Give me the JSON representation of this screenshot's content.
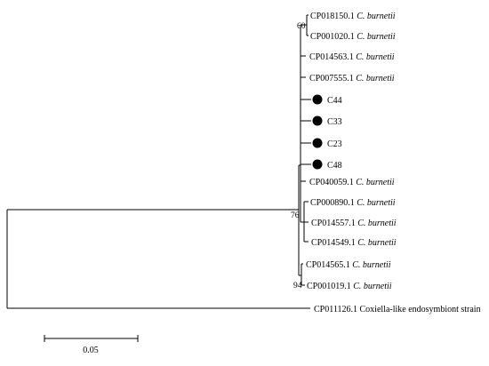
{
  "tree": {
    "taxa": [
      {
        "id": "t1",
        "accession": "CP018150.1",
        "name": "C. burnetii",
        "marker": false
      },
      {
        "id": "t2",
        "accession": "CP001020.1",
        "name": "C. burnetii",
        "marker": false
      },
      {
        "id": "t3",
        "accession": "CP014563.1",
        "name": "C. burnetii",
        "marker": false
      },
      {
        "id": "t4",
        "accession": "CP007555.1",
        "name": "C. burnetii",
        "marker": false
      },
      {
        "id": "t5",
        "accession": "C44",
        "name": "",
        "marker": true
      },
      {
        "id": "t6",
        "accession": "C33",
        "name": "",
        "marker": true
      },
      {
        "id": "t7",
        "accession": "C23",
        "name": "",
        "marker": true
      },
      {
        "id": "t8",
        "accession": "C48",
        "name": "",
        "marker": true
      },
      {
        "id": "t9",
        "accession": "CP040059.1",
        "name": "C. burnetii",
        "marker": false
      },
      {
        "id": "t10",
        "accession": "CP000890.1",
        "name": "C. burnetii",
        "marker": false
      },
      {
        "id": "t11",
        "accession": "CP014557.1",
        "name": "C. burnetii",
        "marker": false
      },
      {
        "id": "t12",
        "accession": "CP014549.1",
        "name": "C. burnetii",
        "marker": false
      },
      {
        "id": "t13",
        "accession": "CP014565.1",
        "name": "C. burnetii",
        "marker": false
      },
      {
        "id": "t14",
        "accession": "CP001019.1",
        "name": "C. burnetii",
        "marker": false
      },
      {
        "id": "t15",
        "accession": "CP011126.1",
        "name": "Coxiella-like endosymbiont strain",
        "marker": false
      }
    ],
    "support_values": {
      "top_clade": "60",
      "main_clade": "76",
      "bottom_pair": "94"
    },
    "scale_bar": {
      "label": "0.05"
    },
    "marker_color": "#000000",
    "line_color": "#000000"
  }
}
